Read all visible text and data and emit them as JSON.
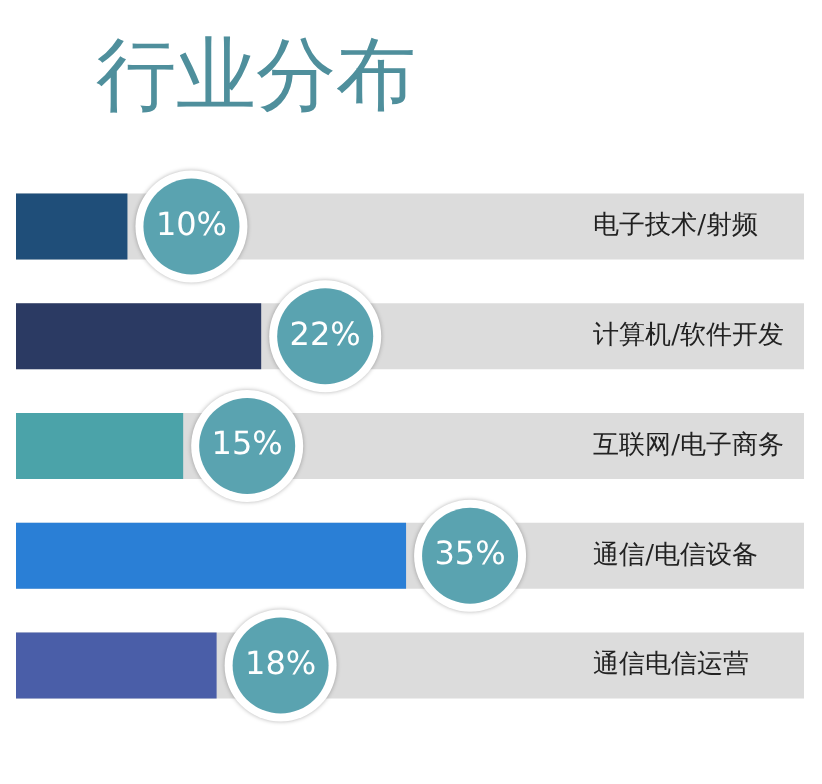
{
  "chart_data": {
    "type": "bar",
    "orientation": "horizontal",
    "title": "行业分布",
    "categories": [
      "电子技术/射频",
      "计算机/软件开发",
      "互联网/电子商务",
      "通信/电信设备",
      "通信电信运营"
    ],
    "values": [
      10,
      22,
      15,
      35,
      18
    ],
    "colors": [
      "#1f4e79",
      "#2b3a63",
      "#4ba3a9",
      "#2a7fd6",
      "#4a5ea8"
    ],
    "value_labels": [
      "10%",
      "22%",
      "15%",
      "35%",
      "18%"
    ],
    "grid": false,
    "legend": false,
    "tick_labels": "y"
  }
}
